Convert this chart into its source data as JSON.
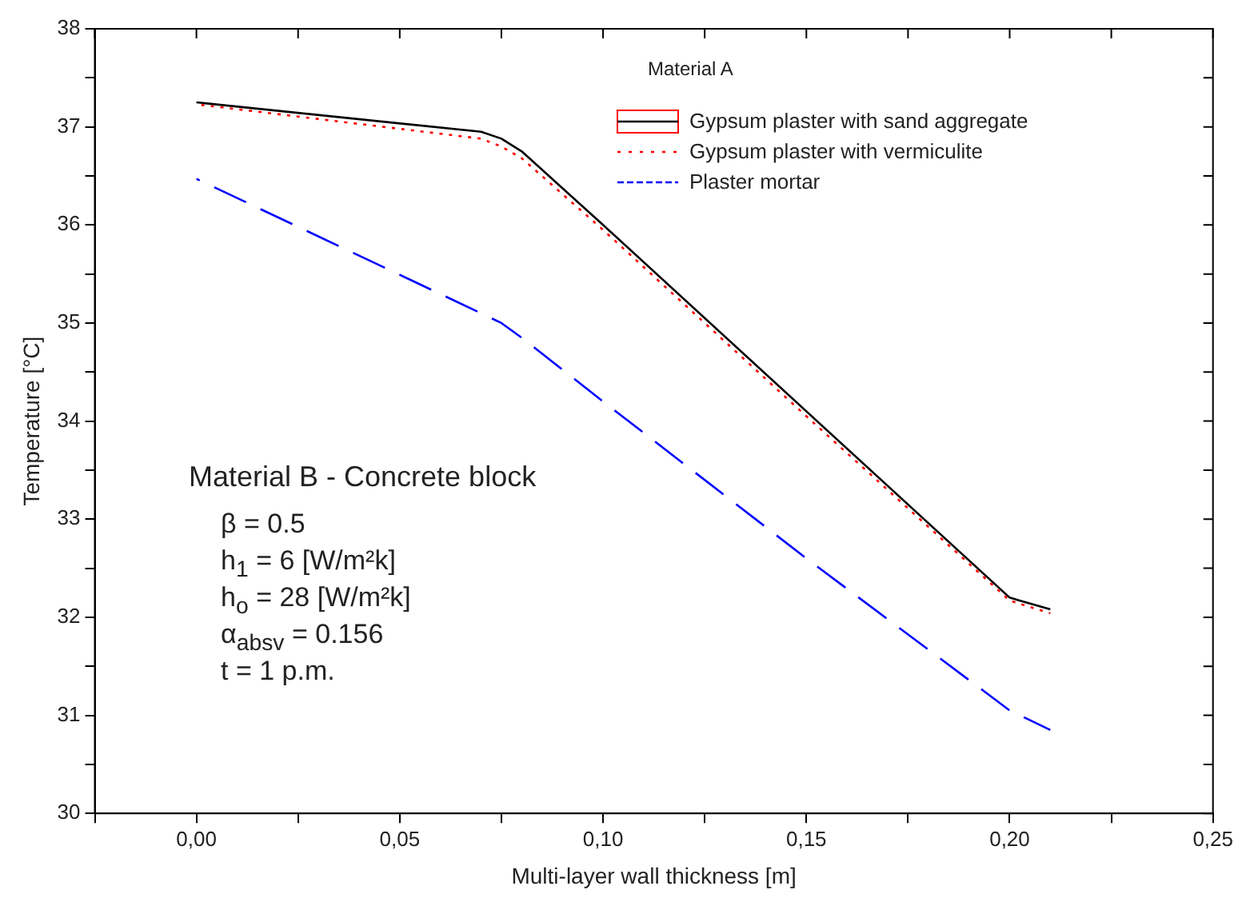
{
  "chart_data": {
    "type": "line",
    "xlabel": "Multi-layer wall thickness [m]",
    "ylabel": "Temperature [°C]",
    "legend_title": "Material A",
    "legend": "top right",
    "grid": false,
    "xlim": [
      -0.025,
      0.25
    ],
    "xticks": [
      {
        "value": -0.025,
        "label": null
      },
      {
        "value": 0,
        "label": "0,00"
      },
      {
        "value": 0.025,
        "label": null
      },
      {
        "value": 0.05,
        "label": "0,05"
      },
      {
        "value": 0.075,
        "label": null
      },
      {
        "value": 0.1,
        "label": "0,10"
      },
      {
        "value": 0.125,
        "label": null
      },
      {
        "value": 0.15,
        "label": "0,15"
      },
      {
        "value": 0.175,
        "label": null
      },
      {
        "value": 0.2,
        "label": "0,20"
      },
      {
        "value": 0.225,
        "label": null
      },
      {
        "value": 0.25,
        "label": "0,25"
      }
    ],
    "ylim": [
      30,
      38
    ],
    "yticks": [
      30,
      {
        "value": 30.5,
        "label": null
      },
      31,
      {
        "value": 31.5,
        "label": null
      },
      32,
      {
        "value": 32.5,
        "label": null
      },
      33,
      {
        "value": 33.5,
        "label": null
      },
      34,
      {
        "value": 34.5,
        "label": null
      },
      35,
      {
        "value": 35.5,
        "label": null
      },
      36,
      {
        "value": 36.5,
        "label": null
      },
      37,
      {
        "value": 37.5,
        "label": null
      },
      38
    ],
    "x": [
      0,
      0.07,
      0.075,
      0.08,
      0.1,
      0.15,
      0.2,
      0.21
    ],
    "series": [
      {
        "name": "Gypsum plaster with sand aggregate",
        "color": "#000000",
        "line_style": "solid",
        "values": [
          37.25,
          36.95,
          36.88,
          36.75,
          36.0,
          34.1,
          32.2,
          32.08
        ]
      },
      {
        "name": "Gypsum plaster with vermiculite",
        "color": "#ff0000",
        "line_style": "dotted",
        "values": [
          37.23,
          36.88,
          36.8,
          36.68,
          35.95,
          34.05,
          32.17,
          32.04
        ]
      },
      {
        "name": "Plaster mortar",
        "color": "#0000ff",
        "line_style": "dashed",
        "values": [
          36.47,
          35.1,
          35.0,
          34.85,
          34.2,
          32.6,
          31.05,
          30.85
        ]
      }
    ],
    "annotations": [
      "Material B - Concrete block",
      "β = 0.5",
      "h$_{1}$ = 6 [W/m²k]",
      "h$_{o}$ = 28 [W/m²k]",
      "α$_{absv}$ = 0.156",
      "t = 1 p.m."
    ]
  }
}
